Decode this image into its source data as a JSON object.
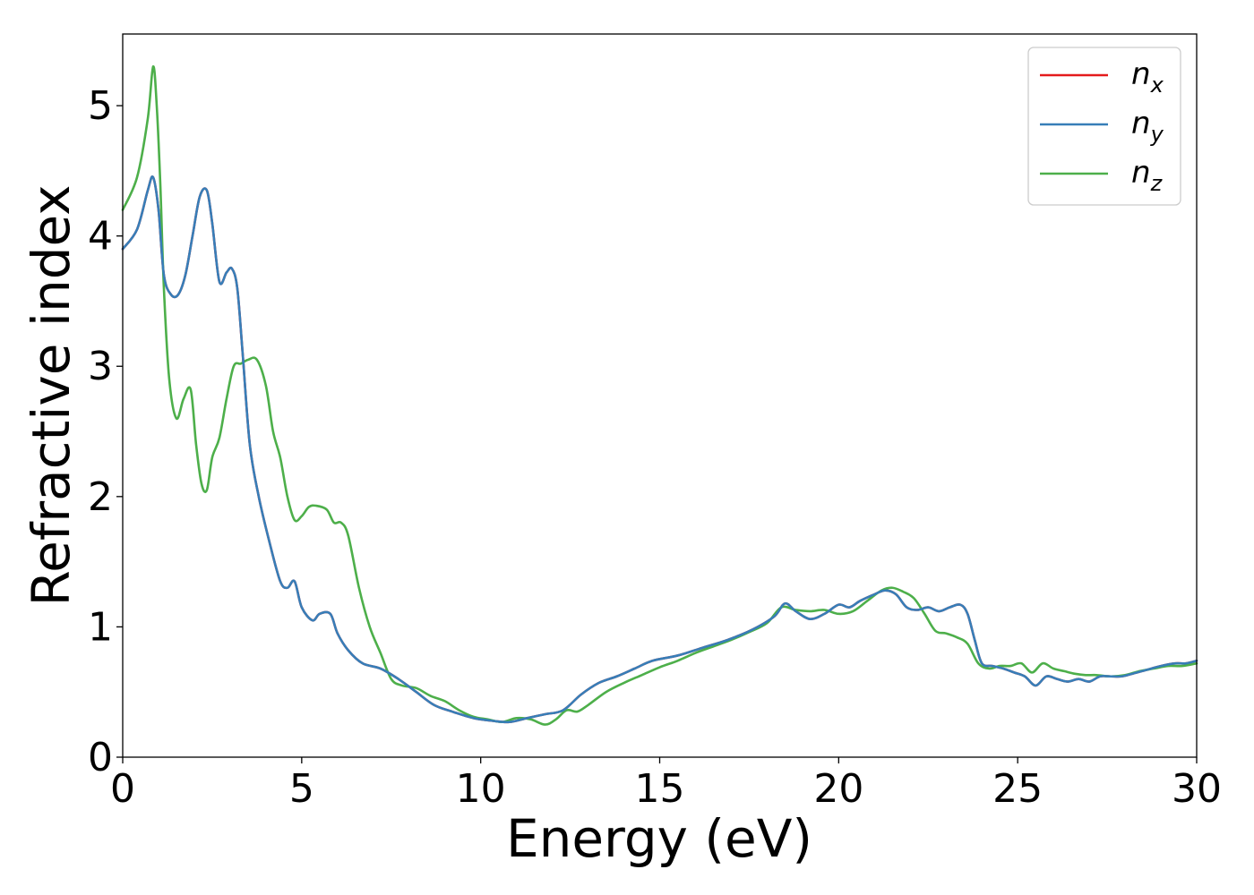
{
  "chart_data": {
    "type": "line",
    "xlabel": "Energy (eV)",
    "ylabel": "Refractive index",
    "xlim": [
      0,
      30
    ],
    "ylim": [
      0,
      5.55
    ],
    "xticks": [
      0,
      5,
      10,
      15,
      20,
      25,
      30
    ],
    "yticks": [
      0,
      1,
      2,
      3,
      4,
      5
    ],
    "grid": false,
    "legend_position": "top-right",
    "series": [
      {
        "name": "n_x",
        "label_main": "n",
        "label_sub": "x",
        "color": "#e41a1c",
        "x": [
          0,
          0.4,
          0.7,
          0.85,
          1.0,
          1.15,
          1.35,
          1.55,
          1.75,
          1.95,
          2.15,
          2.35,
          2.5,
          2.7,
          2.9,
          3.05,
          3.2,
          3.35,
          3.55,
          3.8,
          4.1,
          4.4,
          4.6,
          4.8,
          5.0,
          5.3,
          5.5,
          5.8,
          6.0,
          6.3,
          6.7,
          7.2,
          7.7,
          8.2,
          8.7,
          9.2,
          9.8,
          10.3,
          10.8,
          11.3,
          11.8,
          12.3,
          12.8,
          13.3,
          13.8,
          14.3,
          14.8,
          15.5,
          16.2,
          16.9,
          17.6,
          18.2,
          18.5,
          18.8,
          19.2,
          19.6,
          20.0,
          20.3,
          20.6,
          21.0,
          21.3,
          21.6,
          21.9,
          22.2,
          22.5,
          22.8,
          23.1,
          23.4,
          23.6,
          23.8,
          24.0,
          24.3,
          24.6,
          24.9,
          25.2,
          25.5,
          25.8,
          26.1,
          26.4,
          26.7,
          27.0,
          27.3,
          27.6,
          27.9,
          28.2,
          28.6,
          29.0,
          29.4,
          29.7,
          30.0
        ],
        "y": [
          3.9,
          4.05,
          4.35,
          4.45,
          4.2,
          3.7,
          3.55,
          3.55,
          3.7,
          4.0,
          4.3,
          4.35,
          4.1,
          3.65,
          3.72,
          3.75,
          3.6,
          3.1,
          2.4,
          2.0,
          1.65,
          1.35,
          1.3,
          1.35,
          1.15,
          1.05,
          1.1,
          1.1,
          0.95,
          0.82,
          0.72,
          0.68,
          0.6,
          0.5,
          0.4,
          0.35,
          0.3,
          0.28,
          0.27,
          0.3,
          0.33,
          0.36,
          0.48,
          0.57,
          0.62,
          0.68,
          0.74,
          0.78,
          0.84,
          0.9,
          0.98,
          1.08,
          1.18,
          1.12,
          1.06,
          1.1,
          1.17,
          1.15,
          1.2,
          1.25,
          1.28,
          1.25,
          1.15,
          1.13,
          1.15,
          1.12,
          1.15,
          1.17,
          1.1,
          0.9,
          0.72,
          0.7,
          0.68,
          0.65,
          0.62,
          0.55,
          0.62,
          0.6,
          0.58,
          0.6,
          0.58,
          0.62,
          0.62,
          0.62,
          0.64,
          0.67,
          0.7,
          0.72,
          0.72,
          0.74
        ]
      },
      {
        "name": "n_y",
        "label_main": "n",
        "label_sub": "y",
        "color": "#377eb8",
        "x": [
          0,
          0.4,
          0.7,
          0.85,
          1.0,
          1.15,
          1.35,
          1.55,
          1.75,
          1.95,
          2.15,
          2.35,
          2.5,
          2.7,
          2.9,
          3.05,
          3.2,
          3.35,
          3.55,
          3.8,
          4.1,
          4.4,
          4.6,
          4.8,
          5.0,
          5.3,
          5.5,
          5.8,
          6.0,
          6.3,
          6.7,
          7.2,
          7.7,
          8.2,
          8.7,
          9.2,
          9.8,
          10.3,
          10.8,
          11.3,
          11.8,
          12.3,
          12.8,
          13.3,
          13.8,
          14.3,
          14.8,
          15.5,
          16.2,
          16.9,
          17.6,
          18.2,
          18.5,
          18.8,
          19.2,
          19.6,
          20.0,
          20.3,
          20.6,
          21.0,
          21.3,
          21.6,
          21.9,
          22.2,
          22.5,
          22.8,
          23.1,
          23.4,
          23.6,
          23.8,
          24.0,
          24.3,
          24.6,
          24.9,
          25.2,
          25.5,
          25.8,
          26.1,
          26.4,
          26.7,
          27.0,
          27.3,
          27.6,
          27.9,
          28.2,
          28.6,
          29.0,
          29.4,
          29.7,
          30.0
        ],
        "y": [
          3.9,
          4.05,
          4.35,
          4.45,
          4.2,
          3.7,
          3.55,
          3.55,
          3.7,
          4.0,
          4.3,
          4.35,
          4.1,
          3.65,
          3.72,
          3.75,
          3.6,
          3.1,
          2.4,
          2.0,
          1.65,
          1.35,
          1.3,
          1.35,
          1.15,
          1.05,
          1.1,
          1.1,
          0.95,
          0.82,
          0.72,
          0.68,
          0.6,
          0.5,
          0.4,
          0.35,
          0.3,
          0.28,
          0.27,
          0.3,
          0.33,
          0.36,
          0.48,
          0.57,
          0.62,
          0.68,
          0.74,
          0.78,
          0.84,
          0.9,
          0.98,
          1.08,
          1.18,
          1.12,
          1.06,
          1.1,
          1.17,
          1.15,
          1.2,
          1.25,
          1.28,
          1.25,
          1.15,
          1.13,
          1.15,
          1.12,
          1.15,
          1.17,
          1.1,
          0.9,
          0.72,
          0.7,
          0.68,
          0.65,
          0.62,
          0.55,
          0.62,
          0.6,
          0.58,
          0.6,
          0.58,
          0.62,
          0.62,
          0.62,
          0.64,
          0.67,
          0.7,
          0.72,
          0.72,
          0.74
        ]
      },
      {
        "name": "n_z",
        "label_main": "n",
        "label_sub": "z",
        "color": "#4daf4a",
        "x": [
          0,
          0.4,
          0.7,
          0.85,
          0.95,
          1.05,
          1.15,
          1.3,
          1.5,
          1.7,
          1.9,
          2.05,
          2.2,
          2.35,
          2.5,
          2.7,
          2.9,
          3.1,
          3.3,
          3.5,
          3.75,
          4.0,
          4.2,
          4.4,
          4.6,
          4.8,
          5.0,
          5.2,
          5.4,
          5.7,
          5.9,
          6.1,
          6.3,
          6.6,
          6.9,
          7.2,
          7.5,
          7.8,
          8.2,
          8.6,
          9.0,
          9.4,
          9.8,
          10.2,
          10.6,
          11.0,
          11.4,
          11.8,
          12.1,
          12.4,
          12.7,
          13.0,
          13.5,
          14.0,
          14.5,
          15.0,
          15.5,
          16.0,
          16.5,
          17.0,
          17.5,
          18.0,
          18.4,
          18.8,
          19.2,
          19.6,
          20.0,
          20.4,
          20.8,
          21.2,
          21.5,
          21.8,
          22.1,
          22.4,
          22.7,
          23.0,
          23.3,
          23.6,
          23.9,
          24.2,
          24.5,
          24.8,
          25.1,
          25.4,
          25.7,
          26.0,
          26.3,
          26.6,
          26.9,
          27.2,
          27.6,
          28.0,
          28.4,
          28.8,
          29.2,
          29.6,
          30.0
        ],
        "y": [
          4.2,
          4.45,
          4.9,
          5.3,
          5.0,
          4.4,
          3.6,
          2.9,
          2.6,
          2.75,
          2.82,
          2.4,
          2.1,
          2.05,
          2.3,
          2.45,
          2.75,
          3.0,
          3.02,
          3.05,
          3.05,
          2.85,
          2.5,
          2.3,
          2.0,
          1.82,
          1.85,
          1.92,
          1.93,
          1.9,
          1.8,
          1.8,
          1.7,
          1.3,
          1.0,
          0.8,
          0.6,
          0.55,
          0.53,
          0.47,
          0.43,
          0.36,
          0.31,
          0.29,
          0.27,
          0.3,
          0.29,
          0.25,
          0.29,
          0.36,
          0.35,
          0.4,
          0.5,
          0.57,
          0.63,
          0.69,
          0.74,
          0.8,
          0.85,
          0.9,
          0.96,
          1.03,
          1.15,
          1.13,
          1.12,
          1.13,
          1.1,
          1.12,
          1.2,
          1.28,
          1.3,
          1.27,
          1.22,
          1.1,
          0.97,
          0.95,
          0.92,
          0.87,
          0.72,
          0.68,
          0.7,
          0.7,
          0.72,
          0.65,
          0.72,
          0.68,
          0.66,
          0.64,
          0.63,
          0.63,
          0.62,
          0.63,
          0.66,
          0.68,
          0.7,
          0.7,
          0.72
        ]
      }
    ]
  }
}
